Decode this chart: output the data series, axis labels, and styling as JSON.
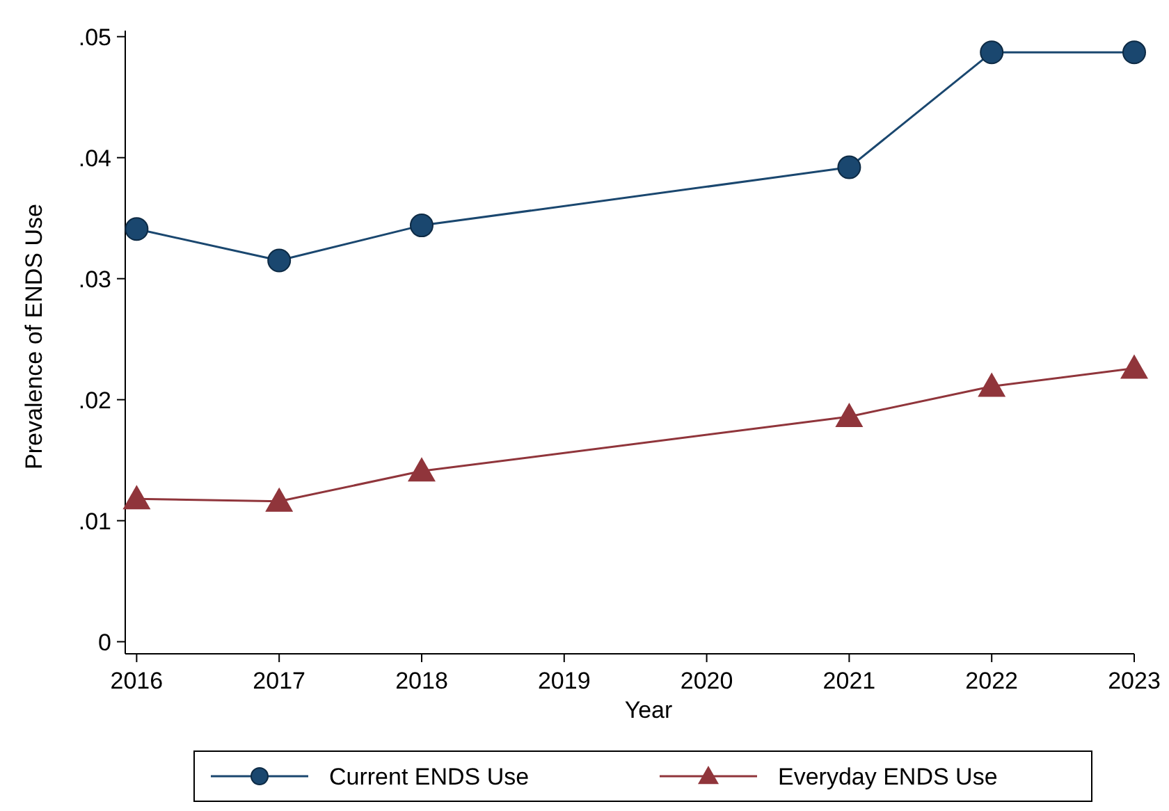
{
  "chart_data": {
    "type": "line",
    "xlabel": "Year",
    "ylabel": "Prevalence of ENDS Use",
    "x": [
      2016,
      2017,
      2018,
      2021,
      2022,
      2023
    ],
    "series": [
      {
        "name": "Current ENDS Use",
        "color": "#1a476f",
        "marker": "circle",
        "values": [
          0.0341,
          0.0315,
          0.0344,
          0.0392,
          0.0487,
          0.0487
        ]
      },
      {
        "name": "Everyday ENDS Use",
        "color": "#90353b",
        "marker": "triangle",
        "values": [
          0.0118,
          0.0116,
          0.0141,
          0.0186,
          0.0211,
          0.0226
        ]
      }
    ],
    "xlim": [
      2015.92,
      2023.0
    ],
    "xticks": [
      2016,
      2017,
      2018,
      2019,
      2020,
      2021,
      2022,
      2023
    ],
    "ylim": [
      -0.001,
      0.0505
    ],
    "yticks": [
      {
        "value": 0,
        "label": "0"
      },
      {
        "value": 0.01,
        "label": ".01"
      },
      {
        "value": 0.02,
        "label": ".02"
      },
      {
        "value": 0.03,
        "label": ".03"
      },
      {
        "value": 0.04,
        "label": ".04"
      },
      {
        "value": 0.05,
        "label": ".05"
      }
    ],
    "grid": false,
    "legend": "bottom",
    "line_style": "solid"
  }
}
